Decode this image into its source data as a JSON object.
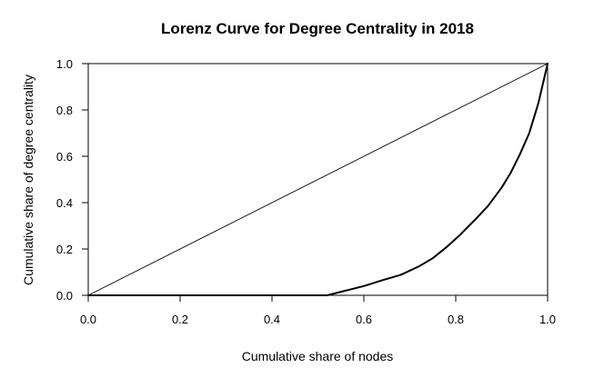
{
  "chart_data": {
    "type": "line",
    "title": "Lorenz Curve for Degree Centrality in 2018",
    "xlabel": "Cumulative share of nodes",
    "ylabel": "Cumulative share of degree centrality",
    "xlim": [
      0,
      1
    ],
    "ylim": [
      0,
      1
    ],
    "xticks": [
      "0.0",
      "0.2",
      "0.4",
      "0.6",
      "0.8",
      "1.0"
    ],
    "yticks": [
      "0.0",
      "0.2",
      "0.4",
      "0.6",
      "0.8",
      "1.0"
    ],
    "grid": false,
    "legend": "none",
    "series": [
      {
        "role": "equality-line",
        "color": "#000000",
        "x": [
          0.0,
          1.0
        ],
        "y": [
          0.0,
          1.0
        ]
      },
      {
        "role": "lorenz-curve",
        "color": "#000000",
        "x": [
          0.0,
          0.52,
          0.56,
          0.6,
          0.64,
          0.68,
          0.72,
          0.75,
          0.78,
          0.81,
          0.84,
          0.87,
          0.9,
          0.92,
          0.94,
          0.96,
          0.98,
          1.0
        ],
        "y": [
          0.0,
          0.0,
          0.02,
          0.04,
          0.065,
          0.088,
          0.125,
          0.16,
          0.208,
          0.262,
          0.322,
          0.385,
          0.465,
          0.53,
          0.61,
          0.7,
          0.83,
          1.0
        ]
      }
    ]
  }
}
